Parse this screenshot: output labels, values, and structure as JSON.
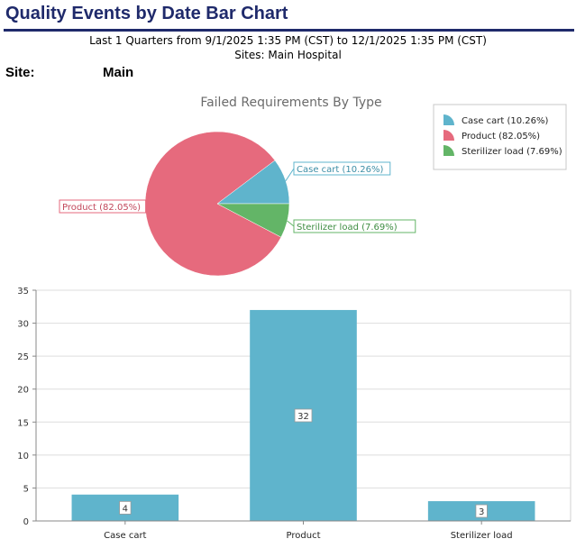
{
  "report": {
    "title": "Quality Events by Date Bar Chart",
    "range_line": "Last 1 Quarters from 9/1/2025 1:35 PM (CST) to 12/1/2025 1:35 PM (CST)",
    "sites_line": "Sites: Main Hospital",
    "site_label": "Site:",
    "site_value": "Main"
  },
  "colors": {
    "title": "#1f2a6b",
    "case_cart": "#5fb4cc",
    "product": "#e66a7d",
    "sterilizer_load": "#63b567",
    "bar": "#5fb4cc"
  },
  "chart_data": [
    {
      "type": "pie",
      "title": "Failed Requirements By Type",
      "slices": [
        {
          "name": "Case cart",
          "value": 10.26,
          "label": "Case cart (10.26%)",
          "color": "#5fb4cc"
        },
        {
          "name": "Product",
          "value": 82.05,
          "label": "Product (82.05%)",
          "color": "#e66a7d"
        },
        {
          "name": "Sterilizer load",
          "value": 7.69,
          "label": "Sterilizer load (7.69%)",
          "color": "#63b567"
        }
      ],
      "legend_position": "top-right"
    },
    {
      "type": "bar",
      "categories": [
        "Case cart",
        "Product",
        "Sterilizer load"
      ],
      "values": [
        4,
        32,
        3
      ],
      "ylim": [
        0,
        35
      ],
      "yticks": [
        0,
        5,
        10,
        15,
        20,
        25,
        30,
        35
      ],
      "grid": true,
      "xlabel": "",
      "ylabel": ""
    }
  ]
}
